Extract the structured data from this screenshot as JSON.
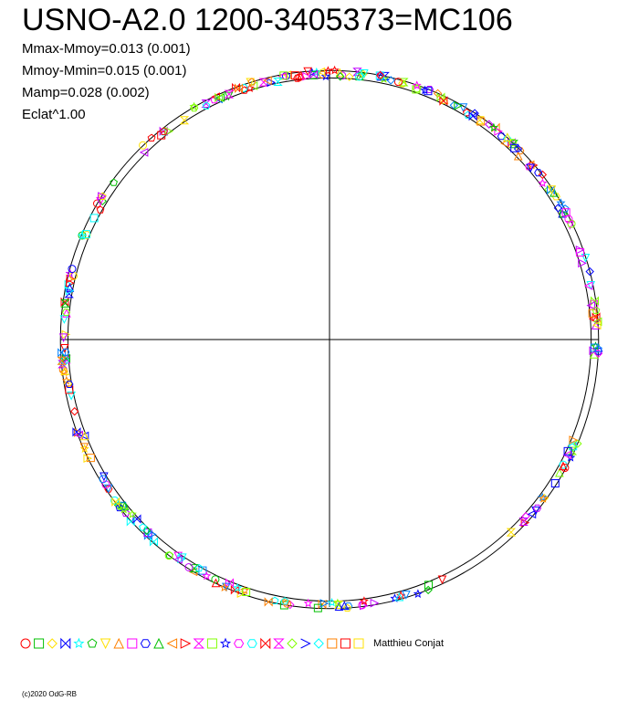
{
  "chart_data": {
    "type": "scatter",
    "title": "USNO-A2.0 1200-3405373=MC106",
    "stats": [
      "Mmax-Mmoy=0.013 (0.001)",
      "Mmoy-Mmin=0.015 (0.001)",
      "Mamp=0.028 (0.002)",
      "Eclat^1.00"
    ],
    "grid": false,
    "mean_radius": 1.0,
    "max_radius": 1.013,
    "min_radius": 0.985,
    "series_colors": [
      "#ff0000",
      "#00c000",
      "#ffe000",
      "#0000ff",
      "#00ffff",
      "#ff8000",
      "#ff00ff",
      "#80ff00",
      "#c000ff",
      "#0080ff"
    ],
    "marker_symbols": [
      "circle",
      "square",
      "diamond",
      "bowtie",
      "star",
      "pentagon",
      "triangle-down",
      "triangle-up",
      "square",
      "hexagon",
      "triangle-up",
      "triangle-left",
      "triangle-right",
      "hourglass",
      "square",
      "star",
      "hexagon",
      "hexagon",
      "bowtie",
      "hourglass",
      "diamond",
      "chevron",
      "diamond",
      "square",
      "square",
      "square"
    ],
    "marker_colors": [
      "#ff0000",
      "#00c000",
      "#ffe000",
      "#0000ff",
      "#00ffff",
      "#00c000",
      "#ffe000",
      "#ff8000",
      "#ff00ff",
      "#0000ff",
      "#00c000",
      "#ff8000",
      "#ff0000",
      "#ff00ff",
      "#80ff00",
      "#0000ff",
      "#ff00ff",
      "#00ffff",
      "#ff0000",
      "#ff00ff",
      "#80ff00",
      "#0000ff",
      "#00ffff",
      "#ff8000",
      "#ff0000",
      "#ffe000"
    ],
    "legend_text": "Matthieu Conjat"
  },
  "footer": {
    "copyright": "(c)2020 OdG-RB"
  }
}
